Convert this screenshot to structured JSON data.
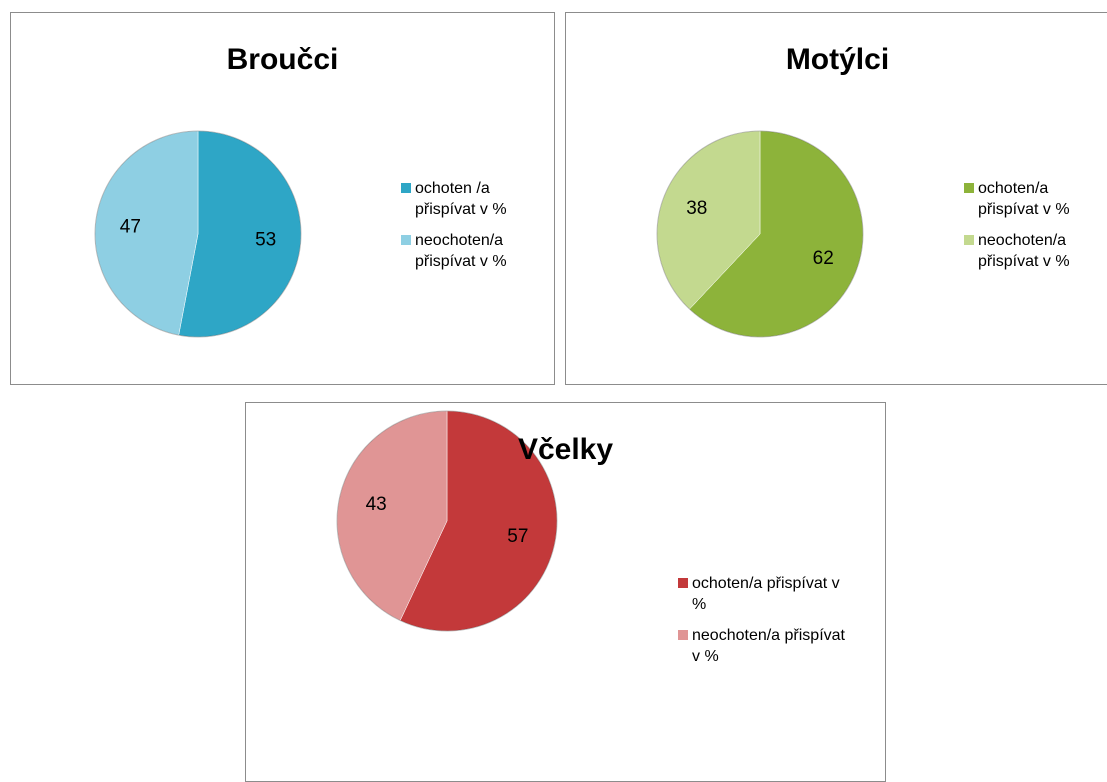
{
  "chart_data": [
    {
      "type": "pie",
      "title": "Broučci",
      "categories": [
        "ochoten /a přispívat v %",
        "neochoten/a přispívat v %"
      ],
      "values": [
        53,
        47
      ],
      "colors": [
        "#2ea6c6",
        "#8ecfe3"
      ]
    },
    {
      "type": "pie",
      "title": "Motýlci",
      "categories": [
        "ochoten/a přispívat v %",
        "neochoten/a přispívat v %"
      ],
      "values": [
        62,
        38
      ],
      "colors": [
        "#8db33a",
        "#c3d98f"
      ]
    },
    {
      "type": "pie",
      "title": "Včelky",
      "categories": [
        "ochoten/a přispívat v %",
        "neochoten/a přispívat v %"
      ],
      "values": [
        57,
        43
      ],
      "colors": [
        "#c3393a",
        "#e09595"
      ]
    }
  ]
}
